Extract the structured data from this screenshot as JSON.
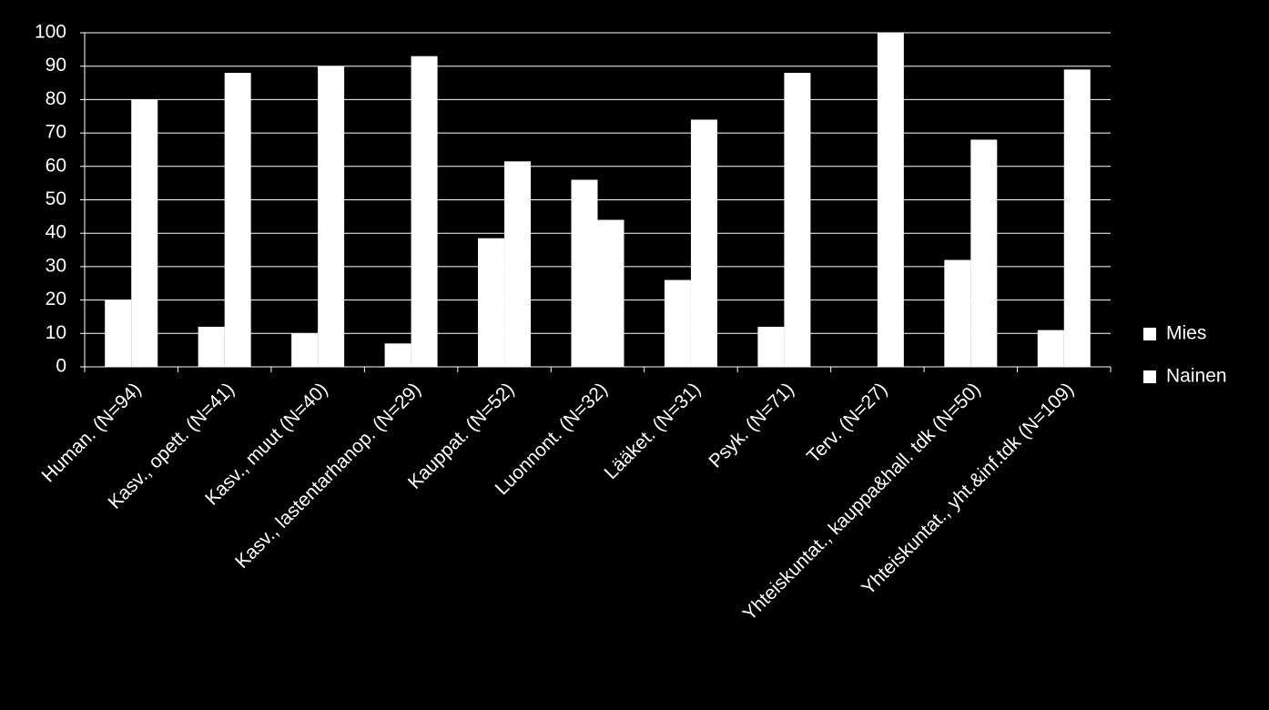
{
  "chart_data": {
    "type": "bar",
    "categories": [
      "Human. (N=94)",
      "Kasv., opett. (N=41)",
      "Kasv., muut (N=40)",
      "Kasv., lastentarhanop. (N=29)",
      "Kauppat. (N=52)",
      "Luonnont. (N=32)",
      "Lääket. (N=31)",
      "Psyk. (N=71)",
      "Terv. (N=27)",
      "Yhteiskuntat., kauppa&hall. tdk (N=50)",
      "Yhteiskuntat., yht.&inf.tdk (N=109)"
    ],
    "series": [
      {
        "name": "Mies",
        "color": "#ffffff",
        "values": [
          20,
          12,
          10,
          7,
          38.5,
          56,
          26,
          12,
          0,
          32,
          11
        ]
      },
      {
        "name": "Nainen",
        "color": "#ffffff",
        "values": [
          80,
          88,
          90,
          93,
          61.5,
          44,
          74,
          88,
          100,
          68,
          89
        ]
      }
    ],
    "ylim": [
      0,
      100
    ],
    "yticks": [
      0,
      10,
      20,
      30,
      40,
      50,
      60,
      70,
      80,
      90,
      100
    ],
    "grid": true,
    "legend": "right"
  }
}
